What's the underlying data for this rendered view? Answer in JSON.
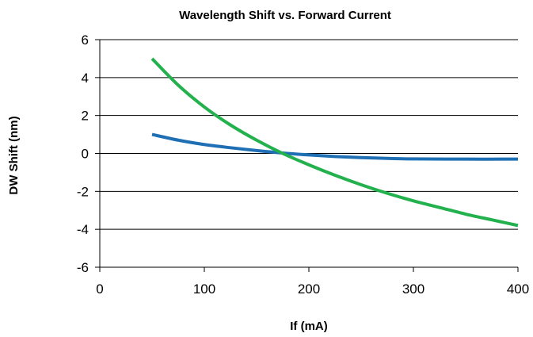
{
  "chart_data": {
    "type": "line",
    "title": "Wavelength Shift vs. Forward Current",
    "xlabel": "If (mA)",
    "ylabel": "DW Shift (nm)",
    "xlim": [
      0,
      400
    ],
    "ylim": [
      -6,
      6
    ],
    "xticks": [
      "0",
      "100",
      "200",
      "300",
      "400"
    ],
    "yticks": [
      "6",
      "4",
      "2",
      "0",
      "-2",
      "-4",
      "-6"
    ],
    "grid": "horizontal",
    "legend": "none",
    "series": [
      {
        "color": "#1f6fb5",
        "x": [
          50,
          75,
          100,
          125,
          150,
          175,
          200,
          225,
          250,
          275,
          300,
          350,
          400
        ],
        "y": [
          1.0,
          0.7,
          0.47,
          0.3,
          0.15,
          0.02,
          -0.08,
          -0.16,
          -0.22,
          -0.26,
          -0.29,
          -0.3,
          -0.3
        ]
      },
      {
        "color": "#22b14c",
        "x": [
          50,
          75,
          100,
          125,
          150,
          175,
          200,
          225,
          250,
          275,
          300,
          325,
          350,
          375,
          400
        ],
        "y": [
          5.0,
          3.6,
          2.45,
          1.5,
          0.7,
          0.0,
          -0.6,
          -1.15,
          -1.65,
          -2.1,
          -2.5,
          -2.85,
          -3.2,
          -3.5,
          -3.8
        ]
      }
    ]
  }
}
